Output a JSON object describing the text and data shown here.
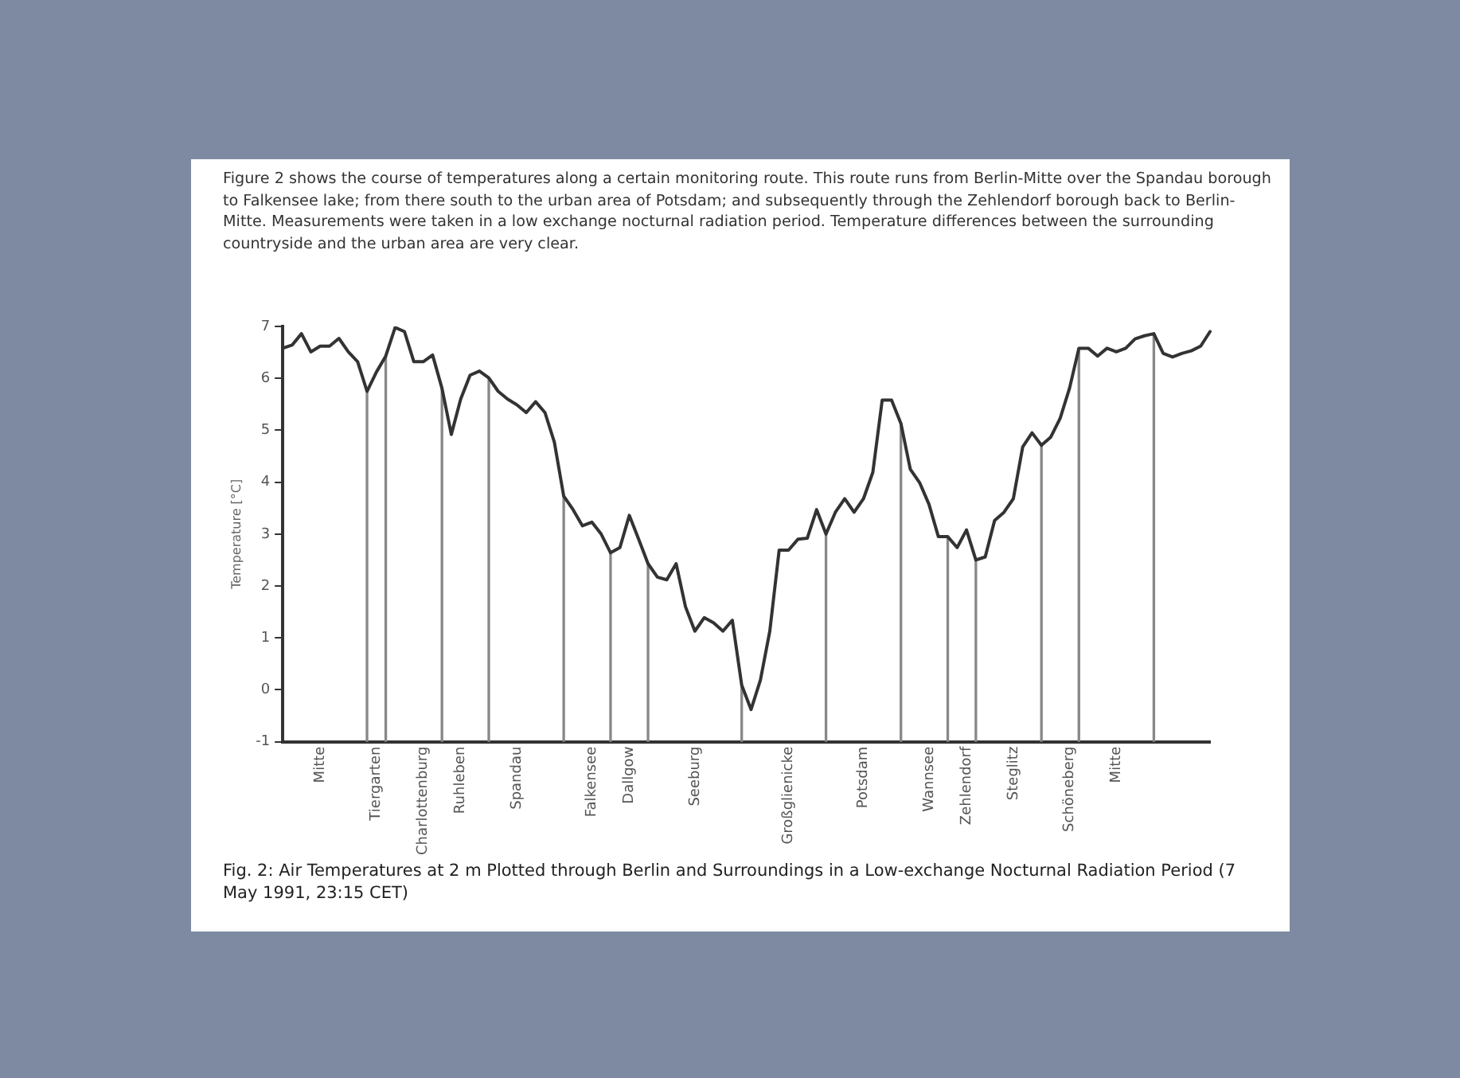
{
  "chart_data": {
    "type": "line",
    "ylabel": "Temperature [°C]",
    "annotations": [
      "Figure 2 shows the course of temperatures along a certain monitoring route. This route runs from Berlin-Mitte over the Spandau borough to Falkensee lake; from there south to the urban area of Potsdam; and subsequently through the Zehlendorf borough back to Berlin-Mitte. Measurements were taken in a low exchange nocturnal radiation period. Temperature differences between the surrounding countryside and the urban area are very clear.",
      "Fig. 2: Air Temperatures at 2 m Plotted through Berlin and Surroundings in a Low-exchange Nocturnal Radiation Period (7 May 1991, 23:15 CET)"
    ],
    "categories": [
      null,
      null,
      null,
      null,
      "Mitte",
      null,
      null,
      null,
      null,
      null,
      "Tiergarten",
      null,
      null,
      null,
      null,
      "Charlottenburg",
      null,
      null,
      null,
      "Ruhleben",
      null,
      null,
      null,
      null,
      null,
      "Spandau",
      null,
      null,
      null,
      null,
      null,
      null,
      null,
      "Falkensee",
      null,
      null,
      null,
      "Dallgow",
      null,
      null,
      null,
      null,
      null,
      null,
      "Seeburg",
      null,
      null,
      null,
      null,
      null,
      null,
      null,
      null,
      null,
      "Großglienicke",
      null,
      null,
      null,
      null,
      null,
      null,
      null,
      "Potsdam",
      null,
      null,
      null,
      null,
      null,
      null,
      "Wannsee",
      null,
      null,
      null,
      "Zehlendorf",
      null,
      null,
      null,
      null,
      "Steglitz",
      null,
      null,
      null,
      null,
      null,
      "Schöneberg",
      null,
      null,
      null,
      null,
      "Mitte",
      null,
      null,
      null,
      null,
      null,
      null,
      null,
      null,
      null,
      null
    ],
    "series": [
      {
        "color": "#333333",
        "values": [
          6.58,
          6.64,
          6.86,
          6.51,
          6.62,
          6.62,
          6.77,
          6.51,
          6.32,
          5.75,
          6.12,
          6.43,
          6.98,
          6.9,
          6.32,
          6.32,
          6.45,
          5.81,
          4.92,
          5.6,
          6.06,
          6.14,
          6.01,
          5.75,
          5.6,
          5.49,
          5.34,
          5.55,
          5.34,
          4.77,
          3.73,
          3.47,
          3.16,
          3.23,
          3.0,
          2.64,
          2.74,
          3.36,
          2.9,
          2.43,
          2.17,
          2.12,
          2.43,
          1.6,
          1.13,
          1.39,
          1.29,
          1.13,
          1.34,
          0.09,
          -0.38,
          0.19,
          1.13,
          2.69,
          2.69,
          2.9,
          2.92,
          3.47,
          3.0,
          3.42,
          3.68,
          3.42,
          3.68,
          4.19,
          5.58,
          5.58,
          5.13,
          4.25,
          3.99,
          3.57,
          2.95,
          2.95,
          2.74,
          3.08,
          2.5,
          2.56,
          3.26,
          3.42,
          3.68,
          4.68,
          4.95,
          4.71,
          4.87,
          5.23,
          5.81,
          6.58,
          6.58,
          6.43,
          6.58,
          6.51,
          6.58,
          6.76,
          6.82,
          6.86,
          6.48,
          6.41,
          6.48,
          6.53,
          6.62,
          6.9
        ]
      },
      {
        "type": "bar",
        "color": "#888888",
        "values": [
          null,
          null,
          null,
          null,
          null,
          null,
          null,
          null,
          null,
          6.75,
          null,
          7.43,
          null,
          null,
          null,
          null,
          null,
          6.81,
          null,
          null,
          null,
          null,
          7.01,
          null,
          null,
          null,
          null,
          null,
          null,
          null,
          4.73,
          null,
          null,
          null,
          null,
          3.64,
          null,
          null,
          null,
          3.43,
          null,
          null,
          null,
          null,
          null,
          null,
          null,
          null,
          null,
          1.09,
          null,
          null,
          null,
          null,
          null,
          null,
          null,
          null,
          4.0,
          null,
          null,
          null,
          null,
          null,
          null,
          null,
          6.13,
          null,
          null,
          null,
          null,
          3.95,
          null,
          null,
          3.5,
          null,
          null,
          null,
          null,
          null,
          null,
          5.71,
          null,
          null,
          null,
          7.58,
          null,
          null,
          null,
          null,
          null,
          null,
          null,
          7.86,
          null,
          null,
          null,
          null,
          null,
          null
        ],
        "base": [
          null,
          null,
          null,
          null,
          null,
          null,
          null,
          null,
          null,
          -1,
          null,
          -1,
          null,
          null,
          null,
          null,
          null,
          -1,
          null,
          null,
          null,
          null,
          -1,
          null,
          null,
          null,
          null,
          null,
          null,
          null,
          -1,
          null,
          null,
          null,
          null,
          -1,
          null,
          null,
          null,
          -1,
          null,
          null,
          null,
          null,
          null,
          null,
          null,
          null,
          null,
          -1,
          null,
          null,
          null,
          null,
          null,
          null,
          null,
          null,
          -1,
          null,
          null,
          null,
          null,
          null,
          null,
          null,
          -1,
          null,
          null,
          null,
          null,
          -1,
          null,
          null,
          -1,
          null,
          null,
          null,
          null,
          null,
          null,
          -1,
          null,
          null,
          null,
          -1,
          null,
          null,
          null,
          null,
          null,
          null,
          null,
          -1,
          null,
          null,
          null,
          null,
          null,
          null
        ]
      }
    ],
    "ylim": [
      -1,
      7
    ],
    "yticks": [
      -1,
      0,
      1,
      2,
      3,
      4,
      5,
      6,
      7
    ],
    "grid": false,
    "legend": false,
    "marker": "none",
    "line_style": "solid"
  }
}
